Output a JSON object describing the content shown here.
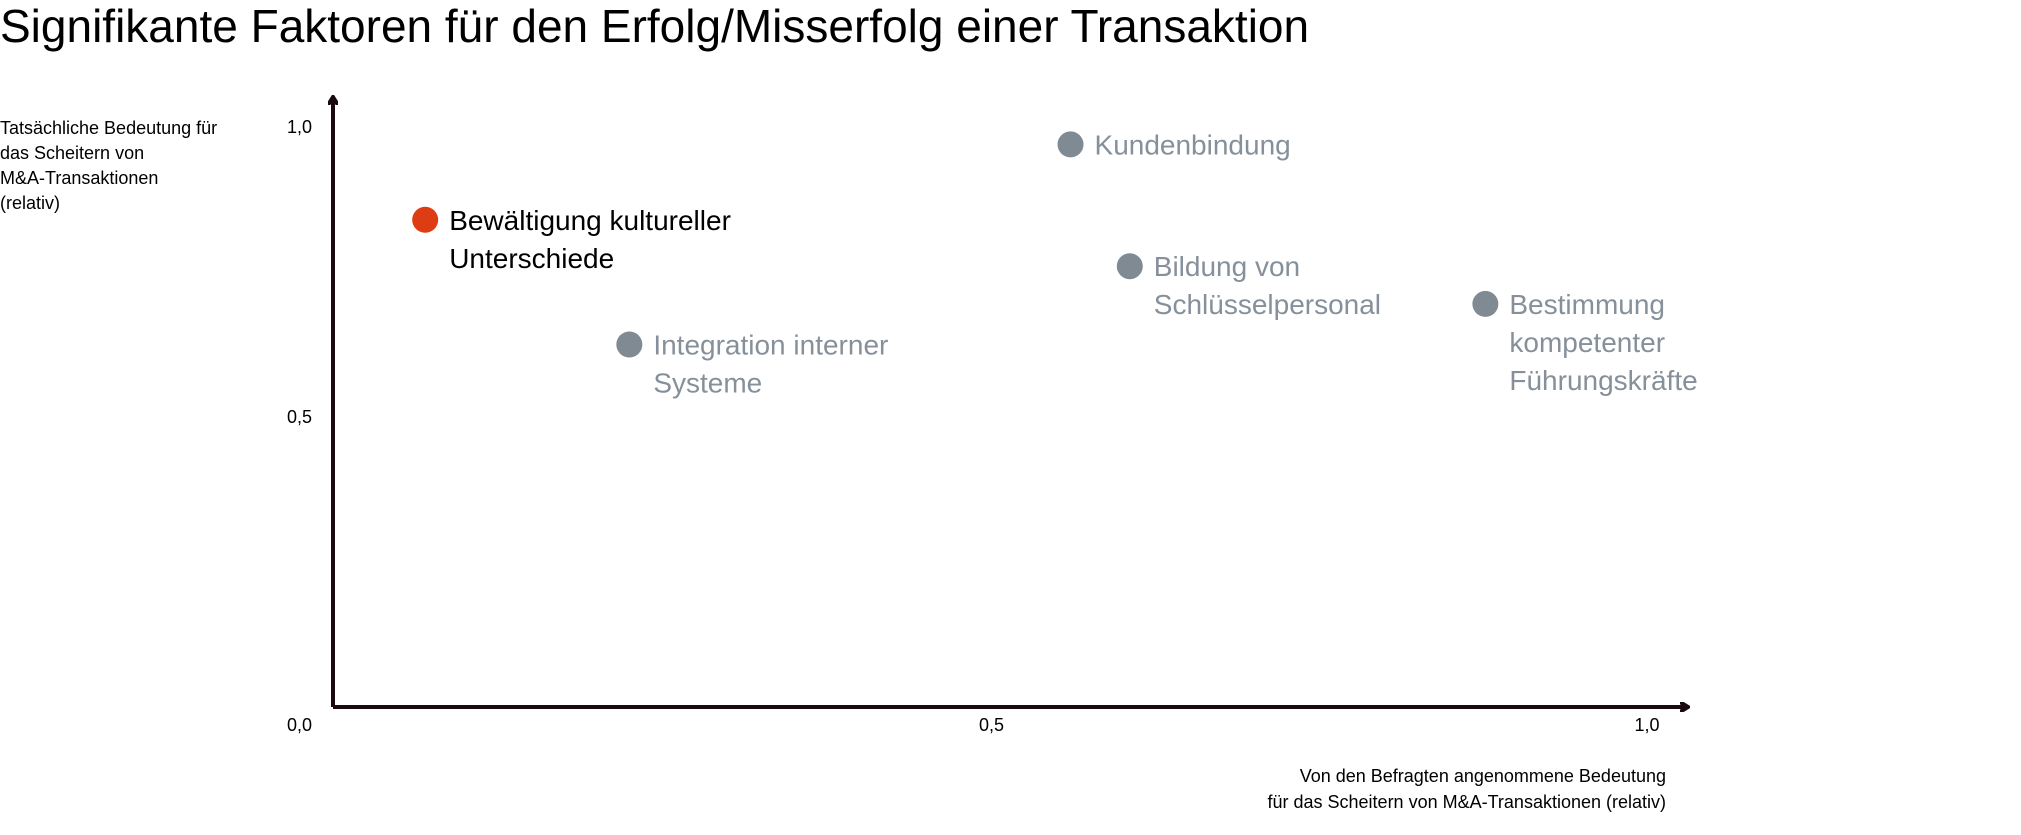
{
  "title": "Signifikante Faktoren für den Erfolg/Misserfolg einer Transaktion",
  "colors": {
    "highlight": "#DE3C12",
    "default": "#7F8A93",
    "highlight_label": "#000000",
    "default_label": "#86909A",
    "axis": "#1A0A10"
  },
  "chart_data": {
    "type": "scatter",
    "title": "Signifikante Faktoren für den Erfolg/Misserfolg einer Transaktion",
    "xlabel": "Von den Befragten angenommene Bedeutung\nfür das Scheitern von M&A-Transaktionen (relativ)",
    "ylabel": "Tatsächliche Bedeutung für\ndas Scheitern von\nM&A-Transaktionen\n(relativ)",
    "xlim": [
      0,
      1
    ],
    "ylim": [
      0,
      1
    ],
    "x_ticks": [
      "0,0",
      "0,5",
      "1,0"
    ],
    "y_ticks": [
      "0,0",
      "0,5",
      "1,0"
    ],
    "grid": false,
    "points": [
      {
        "label": "Bewältigung kultureller Unterschiede",
        "lines": [
          "Bewältigung kultureller",
          "Unterschiede"
        ],
        "x": 0.07,
        "y": 0.84,
        "highlight": true
      },
      {
        "label": "Kundenbindung",
        "lines": [
          "Kundenbindung"
        ],
        "x": 0.56,
        "y": 0.97,
        "highlight": false
      },
      {
        "label": "Bildung von Schlüsselpersonal",
        "lines": [
          "Bildung von",
          "Schlüsselpersonal"
        ],
        "x": 0.605,
        "y": 0.76,
        "highlight": false
      },
      {
        "label": "Integration interner Systeme",
        "lines": [
          "Integration interner",
          "Systeme"
        ],
        "x": 0.225,
        "y": 0.625,
        "highlight": false
      },
      {
        "label": "Bestimmung kompetenter Führungskräfte",
        "lines": [
          "Bestimmung",
          "kompetenter",
          "Führungskräfte"
        ],
        "x": 0.875,
        "y": 0.695,
        "highlight": false
      }
    ]
  }
}
